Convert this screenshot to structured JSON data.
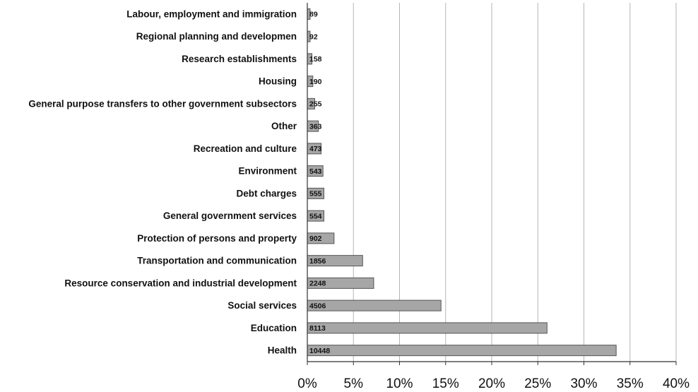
{
  "chart_data": {
    "type": "bar",
    "orientation": "horizontal",
    "categories": [
      "Labour, employment and immigration",
      "Regional planning and developmen",
      "Research establishments",
      "Housing",
      "General purpose transfers to other government subsectors",
      "Other",
      "Recreation and culture",
      "Environment",
      "Debt charges",
      "General government services",
      "Protection of persons and property",
      "Transportation and communication",
      "Resource conservation and industrial development",
      "Social services",
      "Education",
      "Health"
    ],
    "values": [
      0.3,
      0.3,
      0.5,
      0.6,
      0.8,
      1.2,
      1.5,
      1.7,
      1.8,
      1.8,
      2.9,
      6.0,
      7.2,
      14.5,
      26.0,
      33.5
    ],
    "data_labels": [
      "89",
      "92",
      "158",
      "190",
      "255",
      "363",
      "473",
      "543",
      "555",
      "554",
      "902",
      "1856",
      "2248",
      "4506",
      "8113",
      "10448"
    ],
    "xlim": [
      0,
      40
    ],
    "x_ticks": [
      "0%",
      "5%",
      "10%",
      "15%",
      "20%",
      "25%",
      "30%",
      "35%",
      "40%"
    ],
    "grid": "vertical",
    "title": "",
    "xlabel": "",
    "ylabel": ""
  }
}
